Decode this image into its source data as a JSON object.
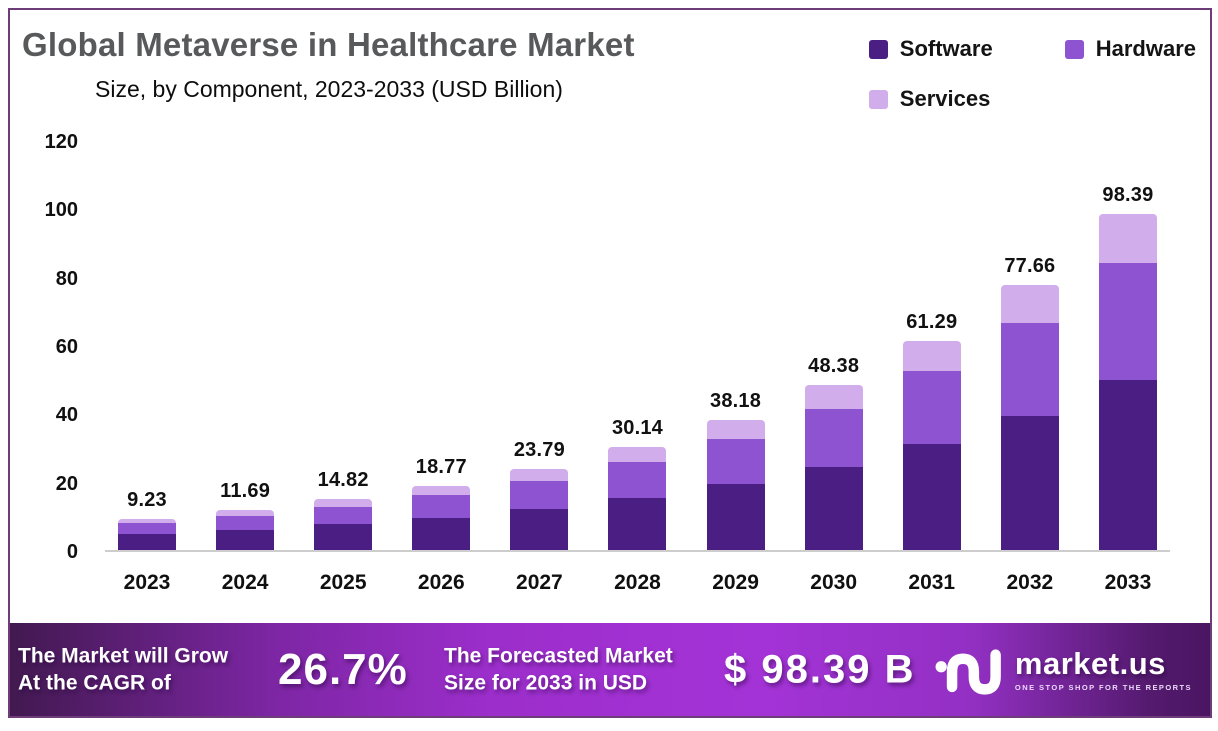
{
  "header": {
    "title": "Global Metaverse in Healthcare Market",
    "subtitle": "Size, by Component, 2023-2033 (USD Billion)"
  },
  "legend": {
    "position": "top-right",
    "items": [
      {
        "label": "Software",
        "color": "#4a1e83"
      },
      {
        "label": "Hardware",
        "color": "#8e53d1"
      },
      {
        "label": "Services",
        "color": "#d2adeb"
      }
    ]
  },
  "chart_data": {
    "type": "bar",
    "stacked": true,
    "title": "Global Metaverse in Healthcare Market Size, by Component, 2023-2033 (USD Billion)",
    "categories": [
      "2023",
      "2024",
      "2025",
      "2026",
      "2027",
      "2028",
      "2029",
      "2030",
      "2031",
      "2032",
      "2033"
    ],
    "totals": [
      9.23,
      11.69,
      14.82,
      18.77,
      23.79,
      30.14,
      38.18,
      48.38,
      61.29,
      77.66,
      98.39
    ],
    "series": [
      {
        "name": "Software",
        "color": "#4a1e83",
        "values": [
          4.66,
          5.9,
          7.48,
          9.48,
          12.01,
          15.22,
          19.28,
          24.43,
          30.95,
          39.22,
          49.69
        ]
      },
      {
        "name": "Hardware",
        "color": "#8e53d1",
        "values": [
          3.23,
          4.09,
          5.19,
          6.57,
          8.33,
          10.55,
          13.36,
          16.93,
          21.45,
          27.18,
          34.44
        ]
      },
      {
        "name": "Services",
        "color": "#d2adeb",
        "values": [
          1.34,
          1.7,
          2.15,
          2.72,
          3.45,
          4.37,
          5.54,
          7.02,
          8.89,
          11.26,
          14.26
        ]
      }
    ],
    "xlabel": "",
    "ylabel": "",
    "ylim": [
      0,
      120
    ],
    "yticks": [
      0,
      20,
      40,
      60,
      80,
      100,
      120
    ],
    "grid": false,
    "value_labels": "totals shown above each bar",
    "legend_position": "top-right",
    "axis_line_color": "#cdcdcd"
  },
  "footer": {
    "cagr_label_line1": "The Market will Grow",
    "cagr_label_line2": "At the CAGR of",
    "cagr_value": "26.7%",
    "forecast_label_line1": "The Forecasted Market",
    "forecast_label_line2": "Size for 2033 in USD",
    "forecast_value": "$ 98.39 B",
    "brand": {
      "name": "market.us",
      "tagline": "ONE STOP SHOP FOR THE REPORTS"
    }
  },
  "frame": {
    "border_color": "#6e3c79"
  }
}
